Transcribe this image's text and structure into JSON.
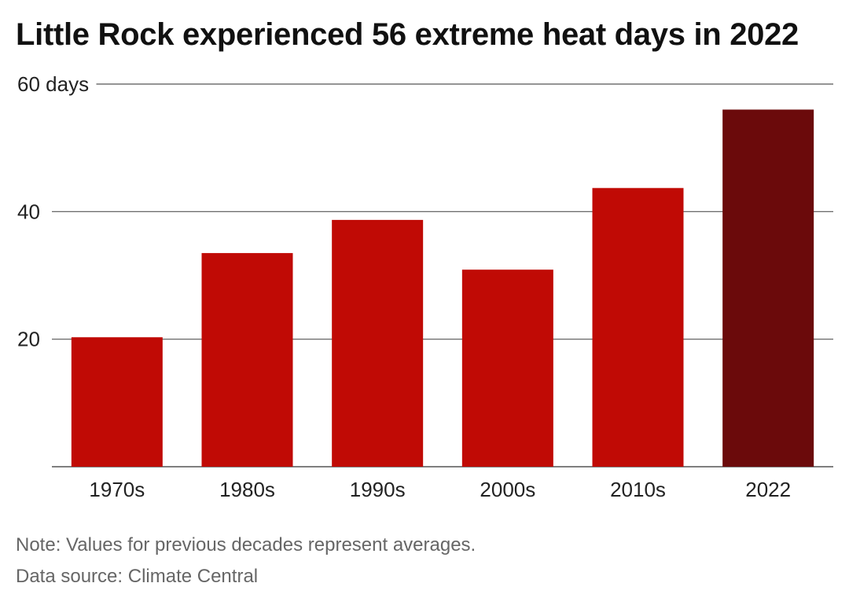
{
  "title": "Little Rock experienced 56 extreme heat days in 2022",
  "notes": {
    "note": "Note: Values for previous decades represent averages.",
    "source": "Data source: Climate Central"
  },
  "colors": {
    "bar": "#c00a05",
    "highlight": "#6b0a0b",
    "grid": "#555555",
    "text": "#222222"
  },
  "chart_data": {
    "type": "bar",
    "categories": [
      "1970s",
      "1980s",
      "1990s",
      "2000s",
      "2010s",
      "2022"
    ],
    "values": [
      20.3,
      33.5,
      38.7,
      30.9,
      43.7,
      56
    ],
    "highlight_index": 5,
    "ylim": [
      0,
      60
    ],
    "y_ticks": [
      20,
      40,
      60
    ],
    "y_tick_labels": [
      "20",
      "40",
      "60 days"
    ],
    "grid": true,
    "legend": "none"
  }
}
